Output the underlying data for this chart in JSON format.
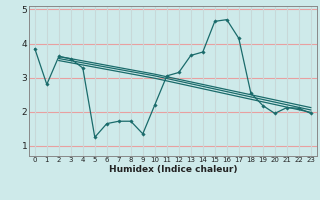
{
  "xlabel": "Humidex (Indice chaleur)",
  "bg_color": "#ceeaea",
  "grid_color_h": "#e8a0a0",
  "grid_color_v": "#c8d8d8",
  "line_color": "#1a6b6b",
  "xlim": [
    -0.5,
    23.5
  ],
  "ylim": [
    0.7,
    5.1
  ],
  "yticks": [
    1,
    2,
    3,
    4,
    5
  ],
  "xticks": [
    0,
    1,
    2,
    3,
    4,
    5,
    6,
    7,
    8,
    9,
    10,
    11,
    12,
    13,
    14,
    15,
    16,
    17,
    18,
    19,
    20,
    21,
    22,
    23
  ],
  "main_line": {
    "x": [
      0,
      1,
      2,
      3,
      4,
      5,
      6,
      7,
      8,
      9,
      10,
      11,
      12,
      13,
      14,
      15,
      16,
      17,
      18,
      19,
      20,
      21,
      22,
      23
    ],
    "y": [
      3.85,
      2.8,
      3.62,
      3.55,
      3.28,
      1.25,
      1.65,
      1.72,
      1.72,
      1.35,
      2.2,
      3.05,
      3.15,
      3.65,
      3.75,
      4.65,
      4.7,
      4.15,
      2.55,
      2.18,
      1.95,
      2.12,
      2.1,
      1.95
    ]
  },
  "trend_lines": [
    {
      "x": [
        2,
        10,
        23
      ],
      "y": [
        3.62,
        3.1,
        2.12
      ]
    },
    {
      "x": [
        2,
        10,
        23
      ],
      "y": [
        3.56,
        3.05,
        2.05
      ]
    },
    {
      "x": [
        2,
        10,
        23
      ],
      "y": [
        3.5,
        2.98,
        1.98
      ]
    }
  ]
}
